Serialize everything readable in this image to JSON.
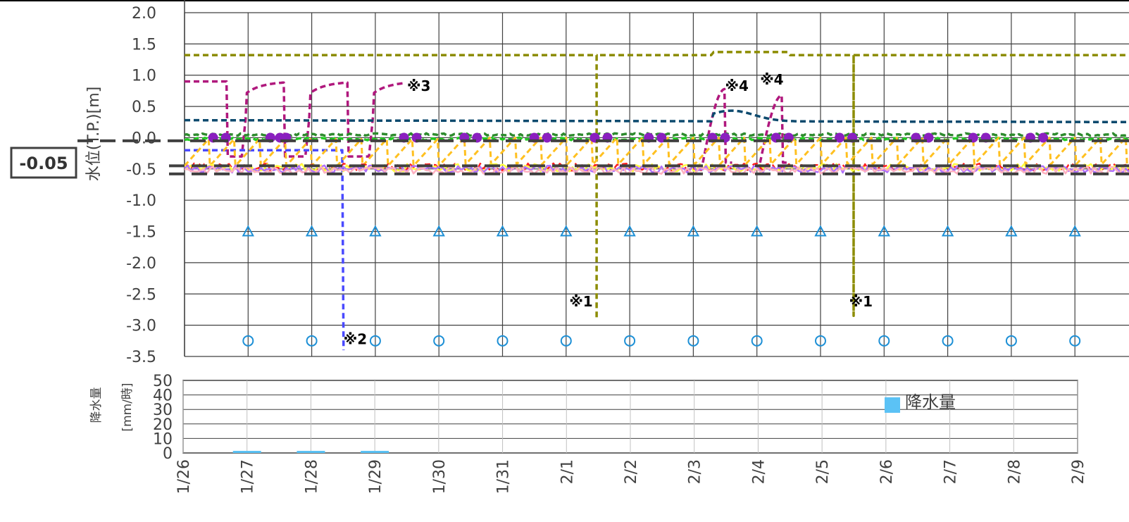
{
  "chart_data": [
    {
      "type": "line",
      "ylabel": "水位(T.P.)[m]",
      "ylim": [
        -3.5,
        2.0
      ],
      "yticks": [
        "2.0",
        "1.5",
        "1.0",
        "0.5",
        "0.0",
        "-0.5",
        "-1.0",
        "-1.5",
        "-2.0",
        "-2.5",
        "-3.0",
        "-3.5"
      ],
      "x_range_days": [
        "1/26",
        "2/9"
      ],
      "grid": true,
      "threshold_label": "-0.05",
      "thresholds": [
        -0.05,
        -0.45,
        -0.58
      ],
      "annotations": [
        {
          "text": "※1",
          "x": "2/1",
          "y": -2.7
        },
        {
          "text": "※1",
          "x": "2/5",
          "y": -2.7
        },
        {
          "text": "※2",
          "x": "1/28",
          "y": -3.3
        },
        {
          "text": "※3",
          "x": "1/29",
          "y": 0.75
        },
        {
          "text": "※4",
          "x": "2/3",
          "y": 0.75
        },
        {
          "text": "※4",
          "x": "2/4",
          "y": 0.85
        }
      ],
      "series": [
        {
          "color": "#8c8c00",
          "style": "dashed",
          "base": 1.32,
          "spikes": [
            {
              "x": 6.5,
              "y": -2.9
            },
            {
              "x": 10.5,
              "y": -2.85
            }
          ]
        },
        {
          "color": "#b0187d",
          "style": "dashed",
          "base": 0.9,
          "pulses_until": 3.5,
          "peaks": [
            {
              "x": 8.5,
              "y": 0.78
            },
            {
              "x": 9.4,
              "y": 0.68
            }
          ]
        },
        {
          "color": "#0d4a6e",
          "style": "dashed",
          "base": 0.28,
          "peak": {
            "x": 8.6,
            "y": 0.45
          }
        },
        {
          "color": "#2e8b2e",
          "style": "dashed",
          "base": 0.05
        },
        {
          "color": "#22cc22",
          "style": "dashed",
          "base": -0.02
        },
        {
          "color": "#4a4aff",
          "style": "dashed",
          "base": -0.2,
          "drop": {
            "x": 2.5,
            "y": -3.4
          }
        },
        {
          "color": "#ffc020",
          "style": "dashed",
          "base": -0.45,
          "sawtooth_max": 0.0
        },
        {
          "color": "#ff2020",
          "style": "dashed",
          "base": -0.47
        },
        {
          "color": "#ffff40",
          "style": "solid",
          "base": -0.48
        },
        {
          "color": "#b070ff",
          "style": "solid",
          "base": -0.5
        },
        {
          "color": "#ffb0c0",
          "style": "solid",
          "base": -0.52
        }
      ],
      "markers": [
        {
          "shape": "circle-filled",
          "color": "#8a1fbf",
          "y": 0.0,
          "x": [
            0.45,
            0.65,
            1.35,
            1.5,
            1.6,
            3.45,
            3.65,
            4.4,
            4.6,
            5.5,
            5.7,
            6.45,
            6.65,
            7.3,
            7.5,
            8.3,
            8.5,
            9.3,
            9.5,
            10.3,
            10.5,
            11.5,
            11.7,
            12.4,
            12.6,
            13.3,
            13.5
          ]
        },
        {
          "shape": "triangle",
          "color": "#1e90d6",
          "y": -1.5,
          "x": [
            1,
            2,
            3,
            4,
            5,
            6,
            7,
            8,
            9,
            10,
            11,
            12,
            13,
            14
          ]
        },
        {
          "shape": "circle-open",
          "color": "#1e90d6",
          "y": -3.25,
          "x": [
            1,
            2,
            3,
            4,
            5,
            6,
            7,
            8,
            9,
            10,
            11,
            12,
            13,
            14
          ]
        }
      ]
    },
    {
      "type": "bar",
      "ylabel_line1": "降水量",
      "ylabel_line2": "[mm/時]",
      "ylim": [
        0,
        50
      ],
      "yticks": [
        "50",
        "40",
        "30",
        "20",
        "10",
        "0"
      ],
      "categories": [
        "1/26",
        "1/27",
        "1/28",
        "1/29",
        "1/30",
        "1/31",
        "2/1",
        "2/2",
        "2/3",
        "2/4",
        "2/5",
        "2/6",
        "2/7",
        "2/8",
        "2/9"
      ],
      "series": [
        {
          "name": "降水量",
          "color": "#5bc2f5",
          "values": [
            0,
            0.5,
            0.5,
            0.5,
            0,
            0,
            0,
            0,
            0,
            0,
            0,
            0,
            0,
            0,
            0
          ]
        }
      ],
      "legend": "right"
    }
  ]
}
